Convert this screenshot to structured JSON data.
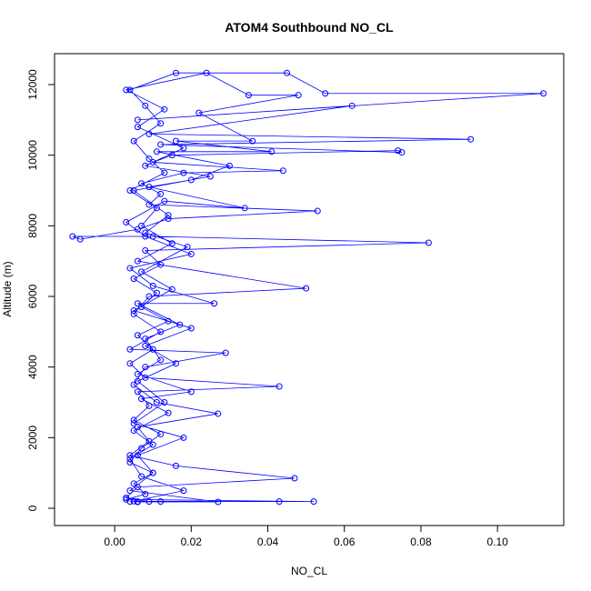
{
  "chart_data": {
    "type": "line",
    "title": "ATOM4 Southbound NO_CL",
    "x_label": "NO_CL",
    "y_label": "Altitude (m)",
    "color": "#0000ff",
    "markers": "open-circle",
    "xlim": [
      -0.0157,
      0.1173
    ],
    "ylim": [
      -489,
      12876
    ],
    "xticks": [
      {
        "value": 0,
        "label": "0.00"
      },
      {
        "value": 0.02,
        "label": "0.02"
      },
      {
        "value": 0.04,
        "label": "0.04"
      },
      {
        "value": 0.06,
        "label": "0.06"
      },
      {
        "value": 0.08,
        "label": "0.08"
      },
      {
        "value": 0.1,
        "label": "0.10"
      }
    ],
    "yticks": [
      0,
      2000,
      4000,
      6000,
      8000,
      10000,
      12000
    ],
    "x": [
      0.004,
      0.006,
      0.012,
      0.052,
      0.003,
      0.008,
      0.005,
      0.01,
      0.004,
      0.007,
      0.012,
      0.005,
      0.009,
      0.006,
      0.043,
      0.008,
      0.004,
      0.01,
      0.006,
      0.014,
      0.007,
      0.011,
      0.005,
      0.012,
      0.008,
      0.082,
      0.01,
      -0.011,
      -0.009,
      0.006,
      0.014,
      0.053,
      0.009,
      0.012,
      0.007,
      0.018,
      0.044,
      0.01,
      0.015,
      0.074,
      0.075,
      0.012,
      0.093,
      0.009,
      0.062,
      0.006,
      0.112,
      0.055,
      0.045,
      0.016,
      0.004,
      0.008,
      0.012,
      0.005,
      0.009,
      0.013,
      0.004,
      0.011,
      0.007,
      0.015,
      0.006,
      0.05,
      0.009,
      0.005,
      0.012,
      0.004,
      0.029,
      0.008,
      0.005,
      0.011,
      0.027,
      0.006,
      0.009,
      0.004,
      0.016,
      0.047,
      0.006,
      0.003,
      0.009,
      0.043,
      0.005,
      0.018,
      0.007,
      0.004,
      0.01,
      0.005,
      0.014,
      0.007,
      0.02,
      0.006,
      0.012,
      0.008,
      0.017,
      0.006,
      0.026,
      0.01,
      0.004,
      0.02,
      0.008,
      0.003,
      0.013,
      0.034,
      0.009,
      0.02,
      0.03,
      0.011,
      0.041,
      0.016,
      0.036,
      0.022,
      0.048,
      0.035,
      0.024,
      0.003,
      0.013,
      0.006,
      0.018,
      0.008,
      0.025,
      0.005,
      0.014,
      0.008,
      0.019,
      0.007,
      0.015,
      0.005,
      0.02,
      0.008,
      0.016,
      0.006,
      0.013,
      0.005,
      0.018,
      0.006,
      0.01,
      0.004,
      0.027,
      0.006
    ],
    "values": [
      190,
      190,
      190,
      190,
      250,
      400,
      700,
      1000,
      1300,
      1700,
      2100,
      2500,
      2900,
      3300,
      3450,
      3700,
      4100,
      4500,
      4900,
      5300,
      5700,
      6100,
      6500,
      6900,
      7300,
      7520,
      7700,
      7700,
      7620,
      7900,
      8200,
      8420,
      8600,
      8900,
      9200,
      9500,
      9560,
      9800,
      10000,
      10130,
      10080,
      10300,
      10450,
      10600,
      11400,
      11000,
      11750,
      11750,
      12330,
      12330,
      11850,
      11400,
      10900,
      10400,
      9900,
      9500,
      9000,
      8500,
      8000,
      7500,
      7000,
      6230,
      6000,
      5500,
      5000,
      4500,
      4400,
      4000,
      3500,
      3000,
      2680,
      2300,
      1900,
      1500,
      1200,
      850,
      600,
      300,
      190,
      190,
      200,
      500,
      900,
      1400,
      1800,
      2200,
      2700,
      3100,
      3300,
      3800,
      4200,
      4800,
      5200,
      5800,
      5800,
      6300,
      6800,
      7200,
      7700,
      8100,
      8700,
      8500,
      9100,
      9300,
      9700,
      10100,
      10100,
      10400,
      10400,
      11200,
      11700,
      11700,
      12330,
      11850,
      11300,
      10800,
      10200,
      9700,
      9400,
      9000,
      8300,
      7800,
      7400,
      6700,
      6200,
      5600,
      5100,
      4600,
      4100,
      3600,
      3000,
      2400,
      2000,
      1500,
      1000,
      500,
      180,
      180
    ]
  }
}
